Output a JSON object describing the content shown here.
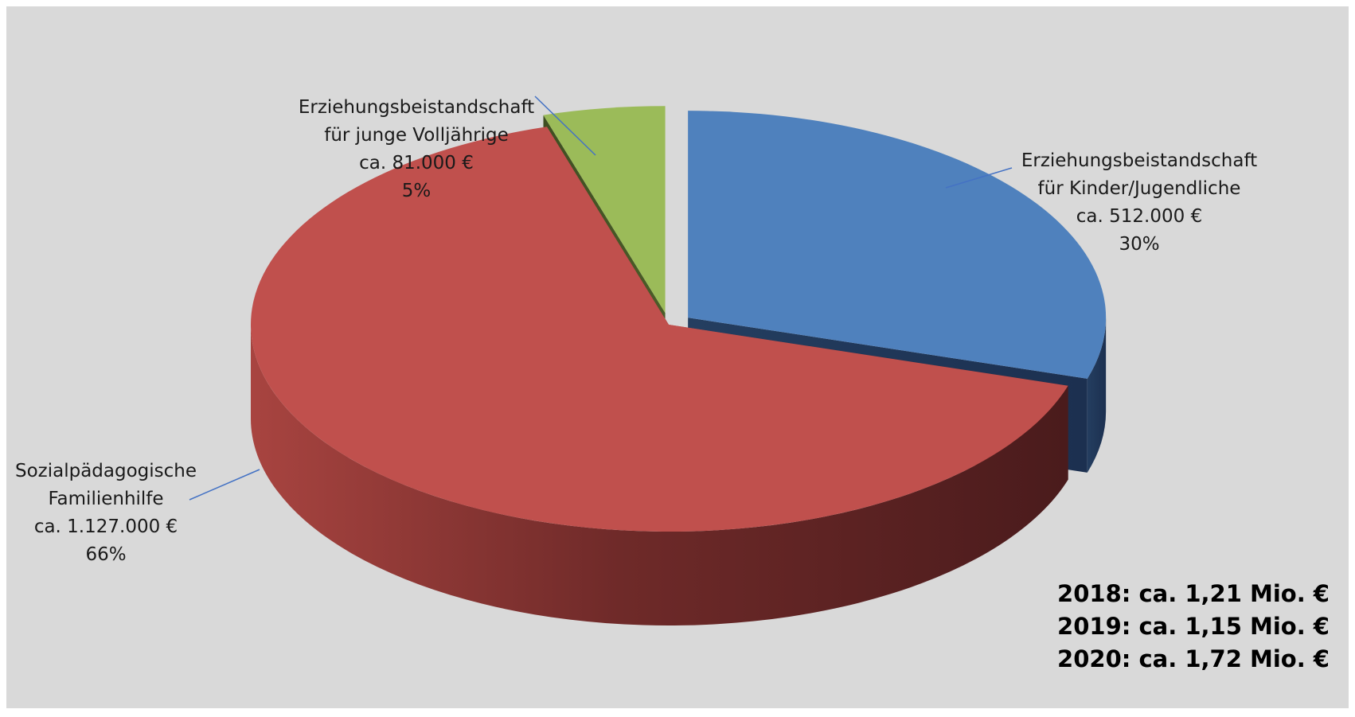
{
  "chart_data": {
    "type": "pie",
    "style": "3d-exploded",
    "slices": [
      {
        "category": "Erziehungsbeistandschaft für Kinder/Jugendliche",
        "label_lines": [
          "Erziehungsbeistandschaft",
          "für Kinder/Jugendliche",
          "ca. 512.000 €",
          "30%"
        ],
        "value_eur": 512000,
        "percent": 30,
        "color": "#4f81bd"
      },
      {
        "category": "Sozialpädagogische Familienhilfe",
        "label_lines": [
          "Sozialpädagogische",
          "Familienhilfe",
          "ca. 1.127.000 €",
          "66%"
        ],
        "value_eur": 1127000,
        "percent": 66,
        "color": "#c0504d"
      },
      {
        "category": "Erziehungsbeistandschaft für junge Volljährige",
        "label_lines": [
          "Erziehungsbeistandschaft",
          "für junge Volljährige",
          "ca. 81.000 €",
          "5%"
        ],
        "value_eur": 81000,
        "percent": 5,
        "color": "#9bbb59"
      }
    ],
    "totals": [
      "2018: ca. 1,21 Mio. €",
      "2019: ca. 1,15 Mio. €",
      "2020: ca. 1,72 Mio. €"
    ],
    "leader_line_color": "#4472c4",
    "background_color": "#d9d9d9"
  }
}
